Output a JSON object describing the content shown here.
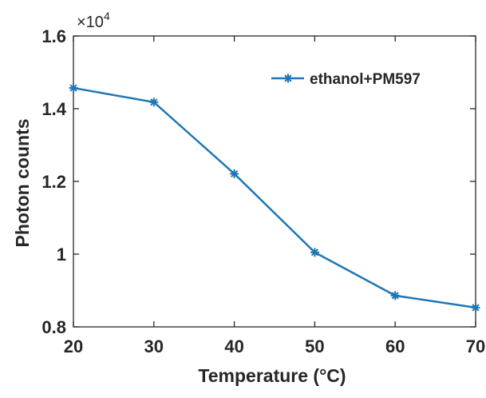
{
  "chart_data": {
    "type": "line",
    "xlabel": "Temperature (°C)",
    "ylabel": "Photon counts",
    "y_multiplier_label": "×10",
    "y_multiplier_exponent": "4",
    "xlim": [
      20,
      70
    ],
    "ylim": [
      0.8,
      1.6
    ],
    "xticks": [
      "20",
      "30",
      "40",
      "50",
      "60",
      "70"
    ],
    "yticks": [
      "0.8",
      "1",
      "1.2",
      "1.4",
      "1.6"
    ],
    "x_tick_values": [
      20,
      30,
      40,
      50,
      60,
      70
    ],
    "y_tick_values": [
      0.8,
      1.0,
      1.2,
      1.4,
      1.6
    ],
    "grid": false,
    "legend_position": "top-right",
    "series": [
      {
        "name": "ethanol+PM597",
        "color": "#1f77b4",
        "marker": "asterisk",
        "x": [
          20,
          30,
          40,
          50,
          60,
          70
        ],
        "y": [
          1.457,
          1.418,
          1.221,
          1.005,
          0.886,
          0.853
        ]
      }
    ]
  }
}
